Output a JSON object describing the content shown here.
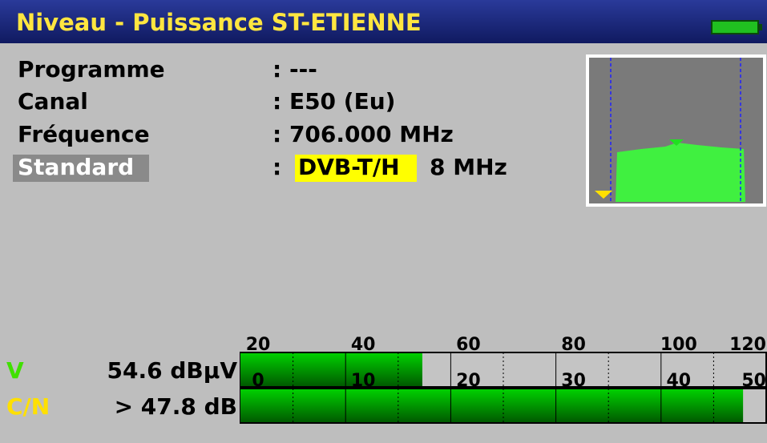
{
  "header": {
    "title": "Niveau - Puissance ST-ETIENNE"
  },
  "info": [
    {
      "label": "Programme",
      "value": ": ---"
    },
    {
      "label": "Canal",
      "value": ": E50  (Eu)"
    },
    {
      "label": "Fréquence",
      "value": ": 706.000 MHz"
    },
    {
      "label": "Standard",
      "value": ":",
      "standard": "DVB-T/H",
      "bandwidth": "8 MHz"
    }
  ],
  "meters": [
    {
      "label": "V",
      "reading": "54.6 dBµV",
      "value": 54.6,
      "range": [
        20,
        120
      ],
      "ticks": [
        20,
        40,
        60,
        80,
        100,
        120
      ],
      "color": "#40e000"
    },
    {
      "label": "C/N",
      "reading": "> 47.8 dB",
      "value": 47.8,
      "range": [
        0,
        50
      ],
      "ticks": [
        0,
        10,
        20,
        30,
        40,
        50
      ],
      "color": "#ffe000"
    }
  ]
}
